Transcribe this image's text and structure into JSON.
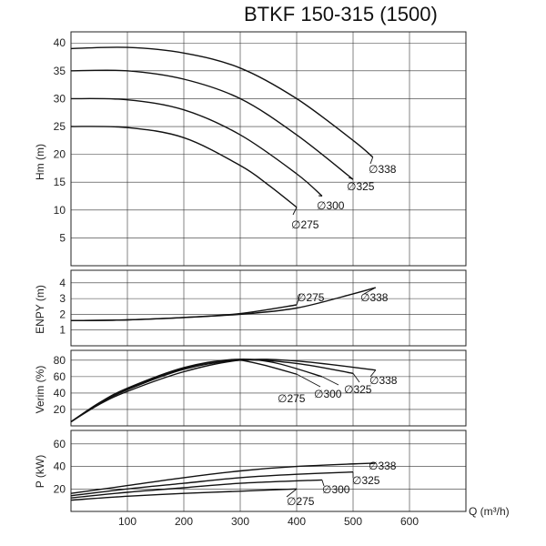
{
  "title": "BTKF 150-315 (1500)",
  "chart_data": {
    "type": "line",
    "title": "BTKF 150-315 (1500)",
    "xlabel": "Q (m³/h)",
    "xlim": [
      0,
      700
    ],
    "xticks": [
      "100",
      "200",
      "300",
      "400",
      "500",
      "600"
    ],
    "panels": [
      {
        "id": "head",
        "ylabel": "Hm (m)",
        "ylim": [
          0,
          42
        ],
        "yticks": [
          "5",
          "10",
          "15",
          "20",
          "25",
          "30",
          "35",
          "40"
        ],
        "grid": true,
        "series": [
          {
            "name": "∅275",
            "x": [
              0,
              100,
              200,
              300,
              350,
              400
            ],
            "y": [
              25,
              24.8,
              23,
              18,
              14.5,
              10.5
            ]
          },
          {
            "name": "∅300",
            "x": [
              0,
              100,
              200,
              300,
              400,
              445
            ],
            "y": [
              30,
              29.8,
              28,
              23.5,
              16.5,
              12.5
            ]
          },
          {
            "name": "∅325",
            "x": [
              0,
              100,
              200,
              300,
              400,
              500
            ],
            "y": [
              35,
              35,
              33.5,
              30,
              23.5,
              15.5
            ]
          },
          {
            "name": "∅338",
            "x": [
              0,
              100,
              200,
              300,
              400,
              500,
              535
            ],
            "y": [
              39,
              39.2,
              38.2,
              35.5,
              30,
              22.5,
              19.5
            ]
          }
        ]
      },
      {
        "id": "npsh",
        "ylabel": "ENPY (m)",
        "ylim": [
          0,
          4.8
        ],
        "yticks": [
          "1",
          "2",
          "3",
          "4"
        ],
        "grid": true,
        "series": [
          {
            "name": "∅275",
            "x": [
              0,
              100,
              200,
              300,
              400
            ],
            "y": [
              1.6,
              1.65,
              1.8,
              2.05,
              2.6
            ]
          },
          {
            "name": "∅338",
            "x": [
              0,
              100,
              200,
              300,
              400,
              500,
              540
            ],
            "y": [
              1.6,
              1.65,
              1.8,
              2.0,
              2.4,
              3.3,
              3.7
            ]
          }
        ]
      },
      {
        "id": "efficiency",
        "ylabel": "Verim (%)",
        "ylim": [
          0,
          92
        ],
        "yticks": [
          "20",
          "40",
          "60",
          "80"
        ],
        "grid": true,
        "series": [
          {
            "name": "∅275",
            "x": [
              0,
              50,
              100,
              200,
              280,
              330,
              400
            ],
            "y": [
              5,
              28,
              45,
              70,
              80,
              76,
              63
            ]
          },
          {
            "name": "∅300",
            "x": [
              0,
              50,
              100,
              200,
              290,
              360,
              445
            ],
            "y": [
              5,
              28,
              46,
              71,
              81,
              77,
              60
            ]
          },
          {
            "name": "∅325",
            "x": [
              0,
              50,
              100,
              200,
              300,
              400,
              500
            ],
            "y": [
              5,
              27,
              44,
              69,
              80,
              76,
              64
            ]
          },
          {
            "name": "∅338",
            "x": [
              0,
              50,
              100,
              200,
              300,
              400,
              540
            ],
            "y": [
              5,
              26,
              42,
              66,
              80,
              79,
              68
            ]
          }
        ]
      },
      {
        "id": "power",
        "ylabel": "P (kW)",
        "ylim": [
          0,
          72
        ],
        "yticks": [
          "20",
          "40",
          "60"
        ],
        "grid": true,
        "series": [
          {
            "name": "∅275",
            "x": [
              0,
              100,
              200,
              300,
              400
            ],
            "y": [
              10,
              13.5,
              16,
              18,
              20
            ]
          },
          {
            "name": "∅300",
            "x": [
              0,
              100,
              200,
              300,
              445
            ],
            "y": [
              12,
              17,
              21,
              25,
              28
            ]
          },
          {
            "name": "∅325",
            "x": [
              0,
              100,
              200,
              300,
              400,
              500
            ],
            "y": [
              14,
              20,
              25,
              30,
              33,
              35
            ]
          },
          {
            "name": "∅338",
            "x": [
              0,
              100,
              200,
              300,
              400,
              540
            ],
            "y": [
              16,
              23,
              30,
              36,
              40,
              43
            ]
          }
        ]
      }
    ]
  }
}
